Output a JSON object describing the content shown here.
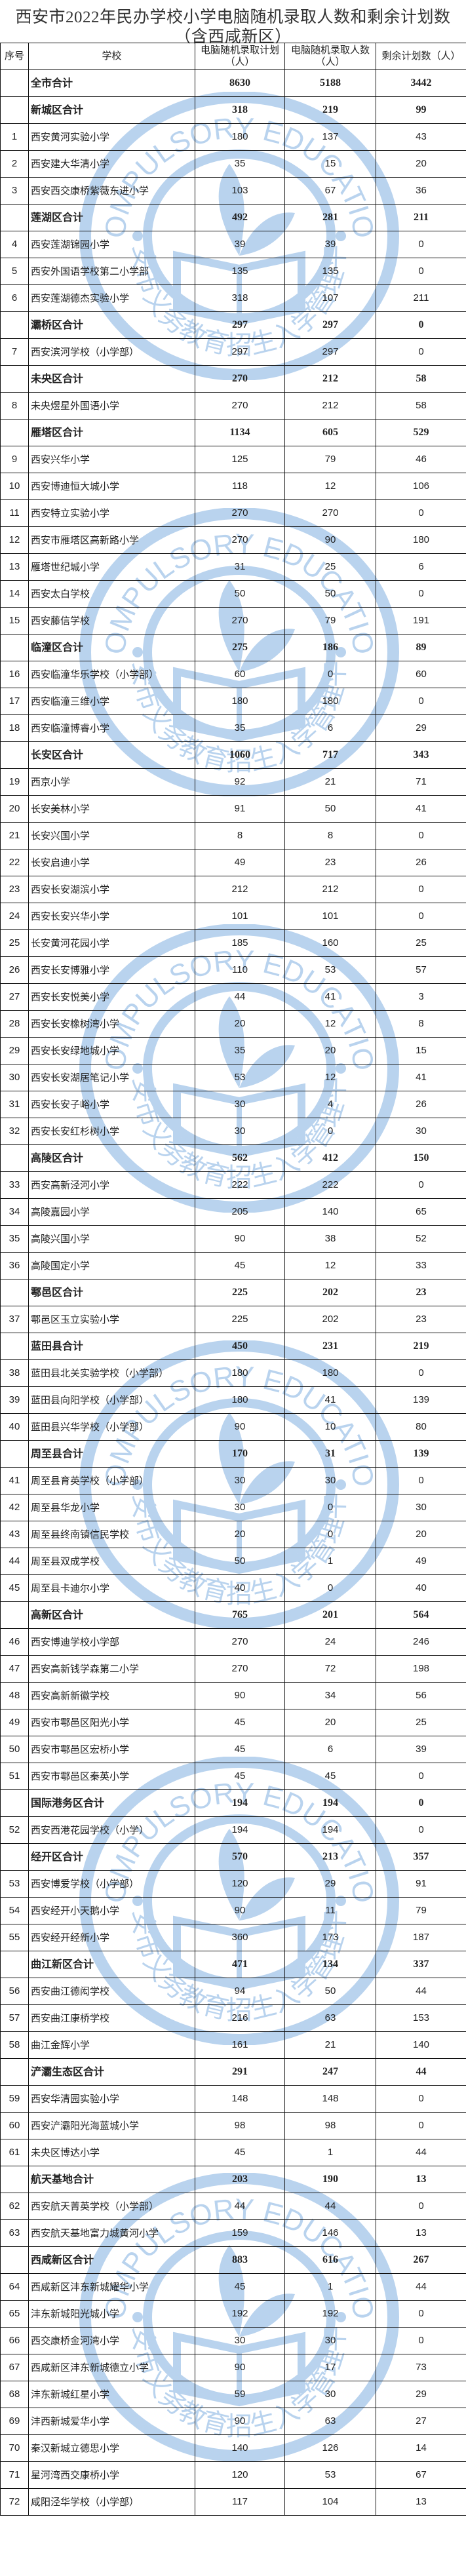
{
  "title": {
    "line1": "西安市2022年民办学校小学电脑随机录取人数和剩余计划数",
    "line2": "（含西咸新区）"
  },
  "watermark": {
    "outer_text": "COMPULSORY EDUCATION",
    "inner_text": "西安市义务教育招生入学管理平台",
    "color": "#b9d3ee"
  },
  "table": {
    "headers": {
      "seq": "序号",
      "school": "学校",
      "plan": "电脑随机录取计划（人）",
      "admitted": "电脑随机录取人数（人）",
      "remaining": "剩余计划数（人）"
    },
    "rows": [
      {
        "seq": "",
        "name": "全市合计",
        "plan": "8630",
        "admitted": "5188",
        "remaining": "3442",
        "total": true
      },
      {
        "seq": "",
        "name": "新城区合计",
        "plan": "318",
        "admitted": "219",
        "remaining": "99",
        "total": true
      },
      {
        "seq": "1",
        "name": "西安黄河实验小学",
        "plan": "180",
        "admitted": "137",
        "remaining": "43"
      },
      {
        "seq": "2",
        "name": "西安建大华清小学",
        "plan": "35",
        "admitted": "15",
        "remaining": "20"
      },
      {
        "seq": "3",
        "name": "西安西交康桥紫薇东进小学",
        "plan": "103",
        "admitted": "67",
        "remaining": "36"
      },
      {
        "seq": "",
        "name": "莲湖区合计",
        "plan": "492",
        "admitted": "281",
        "remaining": "211",
        "total": true
      },
      {
        "seq": "4",
        "name": "西安莲湖锦园小学",
        "plan": "39",
        "admitted": "39",
        "remaining": "0"
      },
      {
        "seq": "5",
        "name": "西安外国语学校第二小学部",
        "plan": "135",
        "admitted": "135",
        "remaining": "0"
      },
      {
        "seq": "6",
        "name": "西安莲湖德杰实验小学",
        "plan": "318",
        "admitted": "107",
        "remaining": "211"
      },
      {
        "seq": "",
        "name": "灞桥区合计",
        "plan": "297",
        "admitted": "297",
        "remaining": "0",
        "total": true
      },
      {
        "seq": "7",
        "name": "西安滨河学校（小学部）",
        "plan": "297",
        "admitted": "297",
        "remaining": "0"
      },
      {
        "seq": "",
        "name": "未央区合计",
        "plan": "270",
        "admitted": "212",
        "remaining": "58",
        "total": true
      },
      {
        "seq": "8",
        "name": "未央煜星外国语小学",
        "plan": "270",
        "admitted": "212",
        "remaining": "58"
      },
      {
        "seq": "",
        "name": "雁塔区合计",
        "plan": "1134",
        "admitted": "605",
        "remaining": "529",
        "total": true
      },
      {
        "seq": "9",
        "name": "西安兴华小学",
        "plan": "125",
        "admitted": "79",
        "remaining": "46"
      },
      {
        "seq": "10",
        "name": "西安博迪恒大城小学",
        "plan": "118",
        "admitted": "12",
        "remaining": "106"
      },
      {
        "seq": "11",
        "name": "西安特立实验小学",
        "plan": "270",
        "admitted": "270",
        "remaining": "0"
      },
      {
        "seq": "12",
        "name": "西安市雁塔区高新路小学",
        "plan": "270",
        "admitted": "90",
        "remaining": "180"
      },
      {
        "seq": "13",
        "name": "雁塔世纪城小学",
        "plan": "31",
        "admitted": "25",
        "remaining": "6"
      },
      {
        "seq": "14",
        "name": "西安太白学校",
        "plan": "50",
        "admitted": "50",
        "remaining": "0"
      },
      {
        "seq": "15",
        "name": "西安藤信学校",
        "plan": "270",
        "admitted": "79",
        "remaining": "191"
      },
      {
        "seq": "",
        "name": "临潼区合计",
        "plan": "275",
        "admitted": "186",
        "remaining": "89",
        "total": true
      },
      {
        "seq": "16",
        "name": "西安临潼华乐学校（小学部）",
        "plan": "60",
        "admitted": "0",
        "remaining": "60"
      },
      {
        "seq": "17",
        "name": "西安临潼三维小学",
        "plan": "180",
        "admitted": "180",
        "remaining": "0"
      },
      {
        "seq": "18",
        "name": "西安临潼博睿小学",
        "plan": "35",
        "admitted": "6",
        "remaining": "29"
      },
      {
        "seq": "",
        "name": "长安区合计",
        "plan": "1060",
        "admitted": "717",
        "remaining": "343",
        "total": true
      },
      {
        "seq": "19",
        "name": "西京小学",
        "plan": "92",
        "admitted": "21",
        "remaining": "71"
      },
      {
        "seq": "20",
        "name": "长安美林小学",
        "plan": "91",
        "admitted": "50",
        "remaining": "41"
      },
      {
        "seq": "21",
        "name": "长安兴国小学",
        "plan": "8",
        "admitted": "8",
        "remaining": "0"
      },
      {
        "seq": "22",
        "name": "长安启迪小学",
        "plan": "49",
        "admitted": "23",
        "remaining": "26"
      },
      {
        "seq": "23",
        "name": "西安长安湖滨小学",
        "plan": "212",
        "admitted": "212",
        "remaining": "0"
      },
      {
        "seq": "24",
        "name": "西安长安兴华小学",
        "plan": "101",
        "admitted": "101",
        "remaining": "0"
      },
      {
        "seq": "25",
        "name": "长安黄河花园小学",
        "plan": "185",
        "admitted": "160",
        "remaining": "25"
      },
      {
        "seq": "26",
        "name": "西安长安博雅小学",
        "plan": "110",
        "admitted": "53",
        "remaining": "57"
      },
      {
        "seq": "27",
        "name": "西安长安悦美小学",
        "plan": "44",
        "admitted": "41",
        "remaining": "3"
      },
      {
        "seq": "28",
        "name": "西安长安橡树湾小学",
        "plan": "20",
        "admitted": "12",
        "remaining": "8"
      },
      {
        "seq": "29",
        "name": "西安长安绿地城小学",
        "plan": "35",
        "admitted": "20",
        "remaining": "15"
      },
      {
        "seq": "30",
        "name": "西安长安湖居笔记小学",
        "plan": "53",
        "admitted": "12",
        "remaining": "41"
      },
      {
        "seq": "31",
        "name": "西安长安子峪小学",
        "plan": "30",
        "admitted": "4",
        "remaining": "26"
      },
      {
        "seq": "32",
        "name": "西安长安红杉树小学",
        "plan": "30",
        "admitted": "0",
        "remaining": "30"
      },
      {
        "seq": "",
        "name": "高陵区合计",
        "plan": "562",
        "admitted": "412",
        "remaining": "150",
        "total": true
      },
      {
        "seq": "33",
        "name": "西安高新泾河小学",
        "plan": "222",
        "admitted": "222",
        "remaining": "0"
      },
      {
        "seq": "34",
        "name": "高陵嘉园小学",
        "plan": "205",
        "admitted": "140",
        "remaining": "65"
      },
      {
        "seq": "35",
        "name": "高陵兴国小学",
        "plan": "90",
        "admitted": "38",
        "remaining": "52"
      },
      {
        "seq": "36",
        "name": "高陵国定小学",
        "plan": "45",
        "admitted": "12",
        "remaining": "33"
      },
      {
        "seq": "",
        "name": "鄠邑区合计",
        "plan": "225",
        "admitted": "202",
        "remaining": "23",
        "total": true
      },
      {
        "seq": "37",
        "name": "鄠邑区玉立实验小学",
        "plan": "225",
        "admitted": "202",
        "remaining": "23"
      },
      {
        "seq": "",
        "name": "蓝田县合计",
        "plan": "450",
        "admitted": "231",
        "remaining": "219",
        "total": true
      },
      {
        "seq": "38",
        "name": "蓝田县北关实验学校（小学部）",
        "plan": "180",
        "admitted": "180",
        "remaining": "0"
      },
      {
        "seq": "39",
        "name": "蓝田县向阳学校（小学部）",
        "plan": "180",
        "admitted": "41",
        "remaining": "139"
      },
      {
        "seq": "40",
        "name": "蓝田县兴华学校（小学部）",
        "plan": "90",
        "admitted": "10",
        "remaining": "80"
      },
      {
        "seq": "",
        "name": "周至县合计",
        "plan": "170",
        "admitted": "31",
        "remaining": "139",
        "total": true
      },
      {
        "seq": "41",
        "name": "周至县育英学校（小学部）",
        "plan": "30",
        "admitted": "30",
        "remaining": "0"
      },
      {
        "seq": "42",
        "name": "周至县华龙小学",
        "plan": "30",
        "admitted": "0",
        "remaining": "30"
      },
      {
        "seq": "43",
        "name": "周至县终南镇信民学校",
        "plan": "20",
        "admitted": "0",
        "remaining": "20"
      },
      {
        "seq": "44",
        "name": "周至县双成学校",
        "plan": "50",
        "admitted": "1",
        "remaining": "49"
      },
      {
        "seq": "45",
        "name": "周至县卡迪尔小学",
        "plan": "40",
        "admitted": "0",
        "remaining": "40"
      },
      {
        "seq": "",
        "name": "高新区合计",
        "plan": "765",
        "admitted": "201",
        "remaining": "564",
        "total": true
      },
      {
        "seq": "46",
        "name": "西安博迪学校小学部",
        "plan": "270",
        "admitted": "24",
        "remaining": "246"
      },
      {
        "seq": "47",
        "name": "西安高新钱学森第二小学",
        "plan": "270",
        "admitted": "72",
        "remaining": "198"
      },
      {
        "seq": "48",
        "name": "西安高新新徽学校",
        "plan": "90",
        "admitted": "34",
        "remaining": "56"
      },
      {
        "seq": "49",
        "name": "西安市鄠邑区阳光小学",
        "plan": "45",
        "admitted": "20",
        "remaining": "25"
      },
      {
        "seq": "50",
        "name": "西安市鄠邑区宏桥小学",
        "plan": "45",
        "admitted": "6",
        "remaining": "39"
      },
      {
        "seq": "51",
        "name": "西安市鄠邑区秦英小学",
        "plan": "45",
        "admitted": "45",
        "remaining": "0"
      },
      {
        "seq": "",
        "name": "国际港务区合计",
        "plan": "194",
        "admitted": "194",
        "remaining": "0",
        "total": true
      },
      {
        "seq": "52",
        "name": "西安西港花园学校（小学）",
        "plan": "194",
        "admitted": "194",
        "remaining": "0"
      },
      {
        "seq": "",
        "name": "经开区合计",
        "plan": "570",
        "admitted": "213",
        "remaining": "357",
        "total": true
      },
      {
        "seq": "53",
        "name": "西安博爱学校（小学部）",
        "plan": "120",
        "admitted": "29",
        "remaining": "91"
      },
      {
        "seq": "54",
        "name": "西安经开小天鹅小学",
        "plan": "90",
        "admitted": "11",
        "remaining": "79"
      },
      {
        "seq": "55",
        "name": "西安经开经新小学",
        "plan": "360",
        "admitted": "173",
        "remaining": "187"
      },
      {
        "seq": "",
        "name": "曲江新区合计",
        "plan": "471",
        "admitted": "134",
        "remaining": "337",
        "total": true
      },
      {
        "seq": "56",
        "name": "西安曲江德闳学校",
        "plan": "94",
        "admitted": "50",
        "remaining": "44"
      },
      {
        "seq": "57",
        "name": "西安曲江康桥学校",
        "plan": "216",
        "admitted": "63",
        "remaining": "153"
      },
      {
        "seq": "58",
        "name": "曲江金辉小学",
        "plan": "161",
        "admitted": "21",
        "remaining": "140"
      },
      {
        "seq": "",
        "name": "浐灞生态区合计",
        "plan": "291",
        "admitted": "247",
        "remaining": "44",
        "total": true
      },
      {
        "seq": "59",
        "name": "西安华清园实验小学",
        "plan": "148",
        "admitted": "148",
        "remaining": "0"
      },
      {
        "seq": "60",
        "name": "西安浐灞阳光海蓝城小学",
        "plan": "98",
        "admitted": "98",
        "remaining": "0"
      },
      {
        "seq": "61",
        "name": "未央区博达小学",
        "plan": "45",
        "admitted": "1",
        "remaining": "44"
      },
      {
        "seq": "",
        "name": "航天基地合计",
        "plan": "203",
        "admitted": "190",
        "remaining": "13",
        "total": true
      },
      {
        "seq": "62",
        "name": "西安航天菁英学校（小学部）",
        "plan": "44",
        "admitted": "44",
        "remaining": "0"
      },
      {
        "seq": "63",
        "name": "西安航天基地富力城黄河小学",
        "plan": "159",
        "admitted": "146",
        "remaining": "13"
      },
      {
        "seq": "",
        "name": "西咸新区合计",
        "plan": "883",
        "admitted": "616",
        "remaining": "267",
        "total": true
      },
      {
        "seq": "64",
        "name": "西咸新区沣东新城耀华小学",
        "plan": "45",
        "admitted": "1",
        "remaining": "44"
      },
      {
        "seq": "65",
        "name": "沣东新城阳光城小学",
        "plan": "192",
        "admitted": "192",
        "remaining": "0"
      },
      {
        "seq": "66",
        "name": "西交康桥金河湾小学",
        "plan": "30",
        "admitted": "30",
        "remaining": "0"
      },
      {
        "seq": "67",
        "name": "西咸新区沣东新城德立小学",
        "plan": "90",
        "admitted": "17",
        "remaining": "73"
      },
      {
        "seq": "68",
        "name": "沣东新城红星小学",
        "plan": "59",
        "admitted": "30",
        "remaining": "29"
      },
      {
        "seq": "69",
        "name": "沣西新城爱华小学",
        "plan": "90",
        "admitted": "63",
        "remaining": "27"
      },
      {
        "seq": "70",
        "name": "秦汉新城立德思小学",
        "plan": "140",
        "admitted": "126",
        "remaining": "14"
      },
      {
        "seq": "71",
        "name": "星河湾西交康桥小学",
        "plan": "120",
        "admitted": "53",
        "remaining": "67"
      },
      {
        "seq": "72",
        "name": "咸阳泾华学校（小学部）",
        "plan": "117",
        "admitted": "104",
        "remaining": "13"
      }
    ]
  }
}
